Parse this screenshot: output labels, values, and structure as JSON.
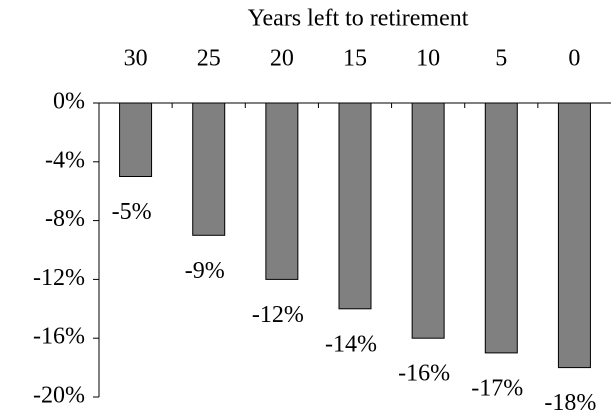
{
  "chart_data": {
    "type": "bar",
    "x_label": "Years left to retirement",
    "categories": [
      "30",
      "25",
      "20",
      "15",
      "10",
      "5",
      "0"
    ],
    "values": [
      -5,
      -9,
      -12,
      -14,
      -16,
      -17,
      -18
    ],
    "value_labels": [
      "-5%",
      "-9%",
      "-12%",
      "-14%",
      "-16%",
      "-17%",
      "-18%"
    ],
    "color": "#808080",
    "ylim": [
      -20,
      0
    ],
    "yticks": [
      {
        "value": 0,
        "label": "0%"
      },
      {
        "value": -4,
        "label": "-4%"
      },
      {
        "value": -8,
        "label": "-8%"
      },
      {
        "value": -12,
        "label": "-12%"
      },
      {
        "value": -16,
        "label": "-16%"
      },
      {
        "value": -20,
        "label": "-20%"
      }
    ],
    "x_axis_position": "top",
    "grid": false
  }
}
